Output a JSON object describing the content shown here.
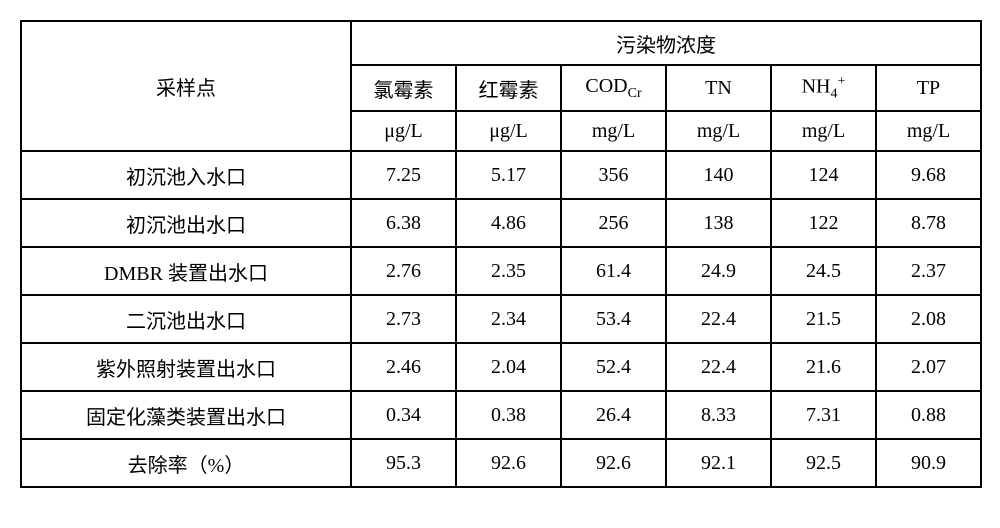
{
  "header": {
    "sample_point": "采样点",
    "pollutant_conc": "污染物浓度",
    "cols": [
      {
        "label_html": "氯霉素",
        "unit": "μg/L"
      },
      {
        "label_html": "红霉素",
        "unit": "μg/L"
      },
      {
        "label_html": "COD<span class=\"sub\">Cr</span>",
        "unit": "mg/L"
      },
      {
        "label_html": "TN",
        "unit": "mg/L"
      },
      {
        "label_html": "NH<span class=\"sub\">4</span><span class=\"sup\">+</span>",
        "unit": "mg/L"
      },
      {
        "label_html": "TP",
        "unit": "mg/L"
      }
    ]
  },
  "rows": [
    {
      "label": "初沉池入水口",
      "values": [
        "7.25",
        "5.17",
        "356",
        "140",
        "124",
        "9.68"
      ]
    },
    {
      "label": "初沉池出水口",
      "values": [
        "6.38",
        "4.86",
        "256",
        "138",
        "122",
        "8.78"
      ]
    },
    {
      "label": "DMBR 装置出水口",
      "values": [
        "2.76",
        "2.35",
        "61.4",
        "24.9",
        "24.5",
        "2.37"
      ]
    },
    {
      "label": "二沉池出水口",
      "values": [
        "2.73",
        "2.34",
        "53.4",
        "22.4",
        "21.5",
        "2.08"
      ]
    },
    {
      "label": "紫外照射装置出水口",
      "values": [
        "2.46",
        "2.04",
        "52.4",
        "22.4",
        "21.6",
        "2.07"
      ]
    },
    {
      "label": "固定化藻类装置出水口",
      "values": [
        "0.34",
        "0.38",
        "26.4",
        "8.33",
        "7.31",
        "0.88"
      ]
    },
    {
      "label": "去除率（%）",
      "values": [
        "95.3",
        "92.6",
        "92.6",
        "92.1",
        "92.5",
        "90.9"
      ]
    }
  ],
  "style": {
    "border_color": "#000000",
    "background_color": "#ffffff",
    "font_size_main": 20,
    "font_size_subsup": 14,
    "col_sample_width": 330,
    "col_data_width": 105
  }
}
